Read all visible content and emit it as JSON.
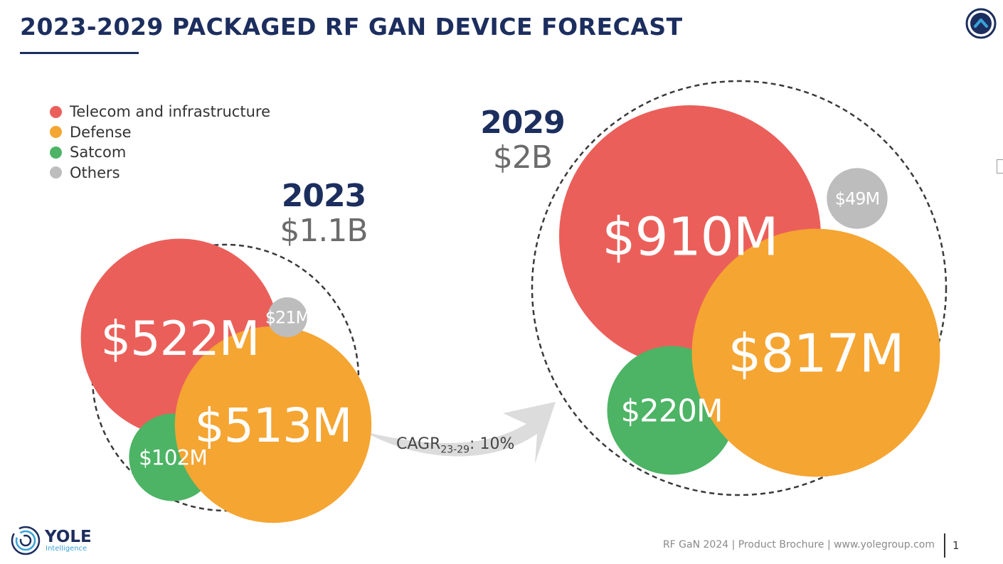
{
  "slide": {
    "title": "2023-2029 PACKAGED RF GAN DEVICE FORECAST",
    "footer": "RF GaN 2024 | Product Brochure | www.yolegroup.com",
    "page_number": "1"
  },
  "logo": {
    "name": "YOLE",
    "sub": "Intelligence"
  },
  "colors": {
    "title": "#1c2e5e",
    "telecom": "#eb5f5a",
    "defense": "#f5a532",
    "satcom": "#4cb464",
    "others": "#bdbdbd"
  },
  "legend": [
    {
      "label": "Telecom and infrastructure",
      "color": "#eb5f5a"
    },
    {
      "label": "Defense",
      "color": "#f5a532"
    },
    {
      "label": "Satcom",
      "color": "#4cb464"
    },
    {
      "label": "Others",
      "color": "#bdbdbd"
    }
  ],
  "chart_data": {
    "type": "bubble",
    "categories": [
      "Telecom and infrastructure",
      "Defense",
      "Satcom",
      "Others"
    ],
    "unit": "$M",
    "groups": [
      {
        "year": "2023",
        "total_label": "$1.1B",
        "values": [
          522,
          513,
          102,
          21
        ],
        "labels": [
          "$522M",
          "$513M",
          "$102M",
          "$21M"
        ]
      },
      {
        "year": "2029",
        "total_label": "$2B",
        "values": [
          910,
          817,
          220,
          49
        ],
        "labels": [
          "$910M",
          "$817M",
          "$220M",
          "$49M"
        ]
      }
    ],
    "cagr": {
      "prefix": "CAGR",
      "period": "23-29",
      "value": ": 10%"
    }
  }
}
